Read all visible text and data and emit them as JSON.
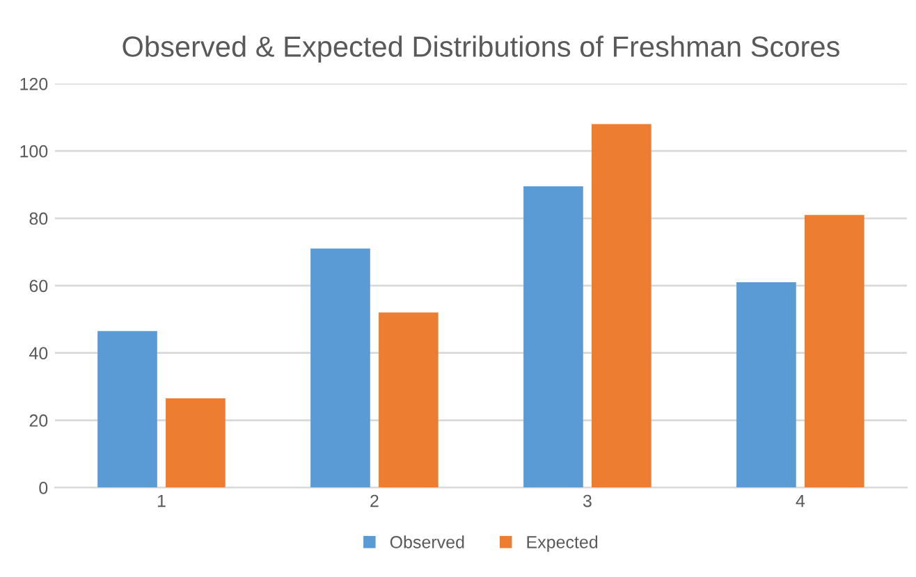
{
  "chart_data": {
    "type": "bar",
    "title": "Observed & Expected Distributions of Freshman Scores",
    "categories": [
      "1",
      "2",
      "3",
      "4"
    ],
    "series": [
      {
        "name": "Observed",
        "color": "#5b9bd5",
        "values": [
          46.5,
          71,
          89.5,
          61
        ]
      },
      {
        "name": "Expected",
        "color": "#ed7d31",
        "values": [
          26.5,
          52,
          108,
          81
        ]
      }
    ],
    "ylim": [
      0,
      120
    ],
    "yticks": [
      0,
      20,
      40,
      60,
      80,
      100,
      120
    ],
    "grid": "y",
    "legend": "bottom"
  }
}
